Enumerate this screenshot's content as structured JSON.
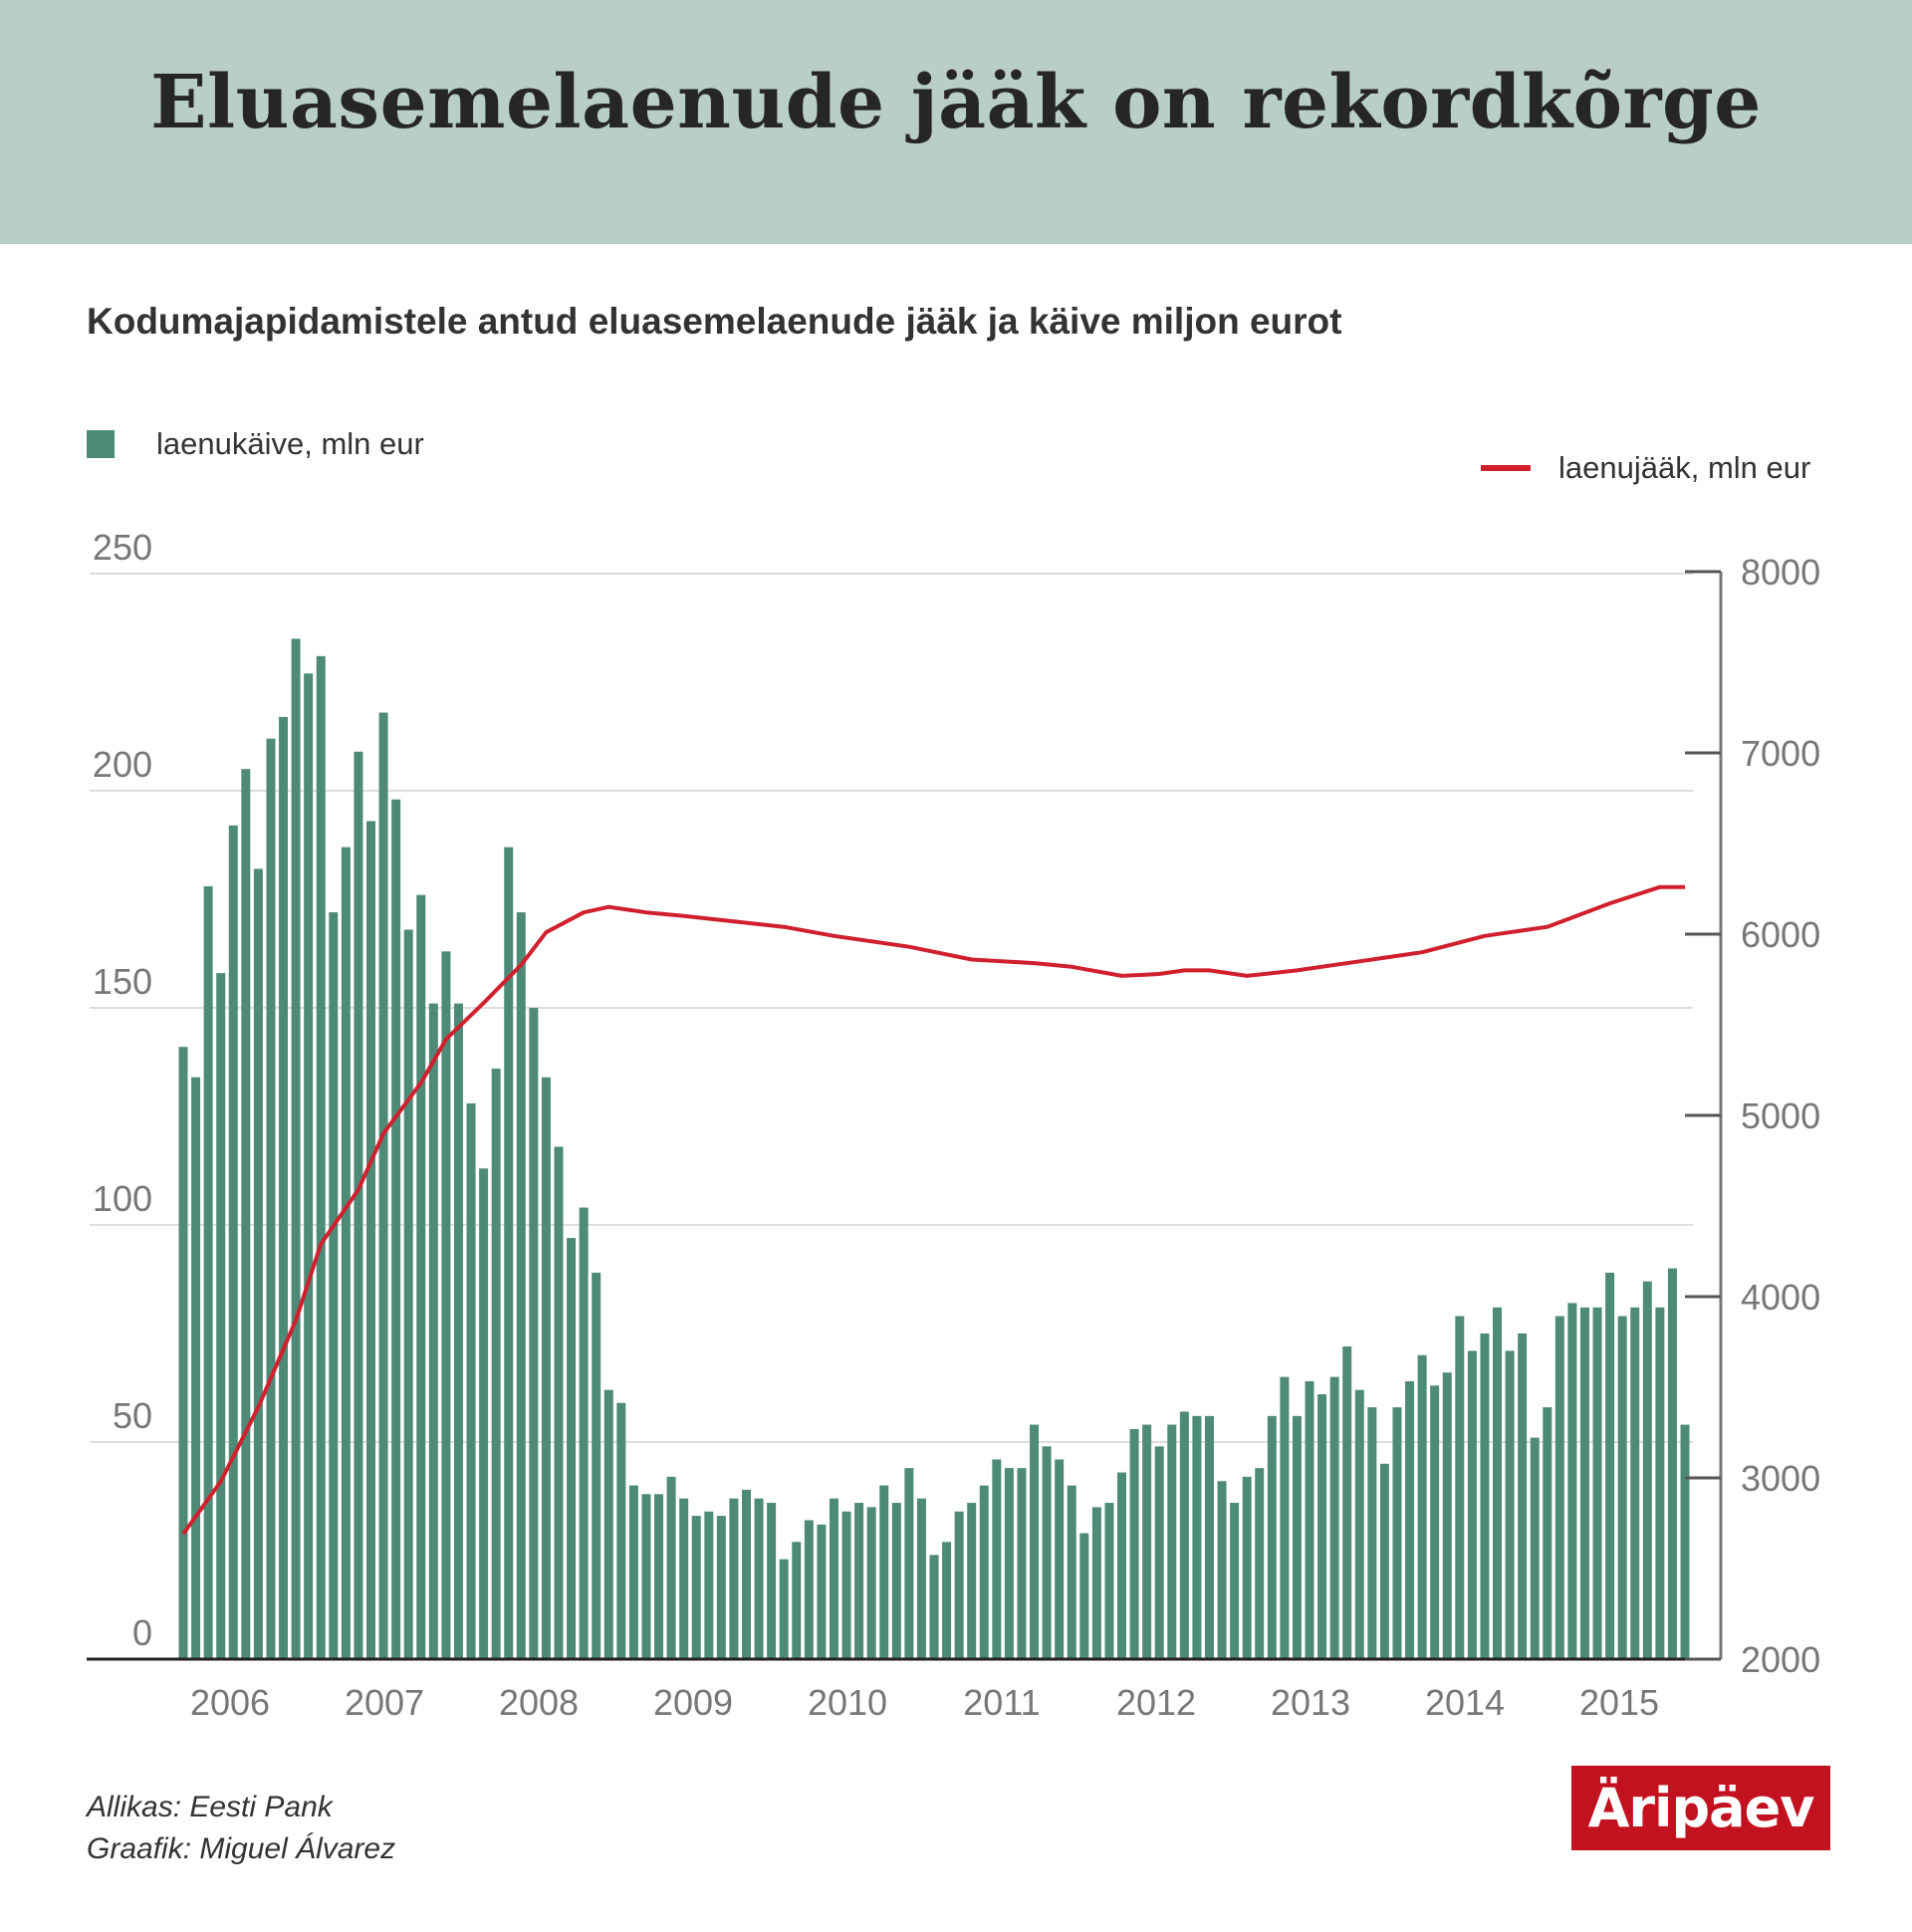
{
  "header": {
    "title": "Eluasemelaenude jääk on rekordkõrge"
  },
  "chart_data": {
    "type": "bar+line",
    "subtitle": "Kodumajapidamistele antud eluasemelaenude jääk ja käive miljon eurot",
    "legend": [
      {
        "name": "laenukäive, mln eur",
        "placement": "top-left",
        "color": "#4e8a78"
      },
      {
        "name": "laenujääk, mln eur",
        "placement": "top-right",
        "color": "#d0202e"
      }
    ],
    "x_tick_labels": [
      "2006",
      "2007",
      "2008",
      "2009",
      "2010",
      "2011",
      "2012",
      "2013",
      "2014",
      "2015"
    ],
    "y_left": {
      "ticks": [
        "0",
        "50",
        "100",
        "150",
        "200",
        "250"
      ],
      "range": [
        0,
        250
      ],
      "grid": true
    },
    "y_right": {
      "ticks": [
        "2000",
        "3000",
        "4000",
        "5000",
        "6000",
        "7000",
        "8000"
      ],
      "range": [
        2000,
        8000
      ]
    },
    "series": [
      {
        "name": "laenukäive, mln eur",
        "type": "bar",
        "axis": "left",
        "x": [
          "2005-09",
          "2005-10",
          "2005-11",
          "2005-12",
          "2006-01",
          "2006-02",
          "2006-03",
          "2006-04",
          "2006-05",
          "2006-06",
          "2006-07",
          "2006-08",
          "2006-09",
          "2006-10",
          "2006-11",
          "2006-12",
          "2007-01",
          "2007-02",
          "2007-03",
          "2007-04",
          "2007-05",
          "2007-06",
          "2007-07",
          "2007-08",
          "2007-09",
          "2007-10",
          "2007-11",
          "2007-12",
          "2008-01",
          "2008-02",
          "2008-03",
          "2008-04",
          "2008-05",
          "2008-06",
          "2008-07",
          "2008-08",
          "2008-09",
          "2008-10",
          "2008-11",
          "2008-12",
          "2009-01",
          "2009-02",
          "2009-03",
          "2009-04",
          "2009-05",
          "2009-06",
          "2009-07",
          "2009-08",
          "2009-09",
          "2009-10",
          "2009-11",
          "2009-12",
          "2010-01",
          "2010-02",
          "2010-03",
          "2010-04",
          "2010-05",
          "2010-06",
          "2010-07",
          "2010-08",
          "2010-09",
          "2010-10",
          "2010-11",
          "2010-12",
          "2011-01",
          "2011-02",
          "2011-03",
          "2011-04",
          "2011-05",
          "2011-06",
          "2011-07",
          "2011-08",
          "2011-09",
          "2011-10",
          "2011-11",
          "2011-12",
          "2012-01",
          "2012-02",
          "2012-03",
          "2012-04",
          "2012-05",
          "2012-06",
          "2012-07",
          "2012-08",
          "2012-09",
          "2012-10",
          "2012-11",
          "2012-12",
          "2013-01",
          "2013-02",
          "2013-03",
          "2013-04",
          "2013-05",
          "2013-06",
          "2013-07",
          "2013-08",
          "2013-09",
          "2013-10",
          "2013-11",
          "2013-12",
          "2014-01",
          "2014-02",
          "2014-03",
          "2014-04",
          "2014-05",
          "2014-06",
          "2014-07",
          "2014-08",
          "2014-09",
          "2014-10",
          "2014-11",
          "2014-12",
          "2015-01",
          "2015-02",
          "2015-03",
          "2015-04",
          "2015-05",
          "2015-06",
          "2015-07",
          "2015-08",
          "2015-09"
        ],
        "values": [
          141,
          134,
          178,
          158,
          192,
          205,
          182,
          212,
          217,
          235,
          227,
          231,
          172,
          187,
          209,
          193,
          218,
          198,
          168,
          176,
          151,
          163,
          151,
          128,
          113,
          136,
          187,
          172,
          150,
          134,
          118,
          97,
          104,
          89,
          62,
          59,
          40,
          38,
          38,
          42,
          37,
          33,
          34,
          33,
          37,
          39,
          37,
          36,
          23,
          27,
          32,
          31,
          37,
          34,
          36,
          35,
          40,
          36,
          44,
          37,
          24,
          27,
          34,
          36,
          40,
          46,
          44,
          44,
          54,
          49,
          46,
          40,
          29,
          35,
          36,
          43,
          53,
          54,
          49,
          54,
          57,
          56,
          56,
          41,
          36,
          42,
          44,
          56,
          65,
          56,
          64,
          61,
          65,
          72,
          62,
          58,
          45,
          58,
          64,
          70,
          63,
          66,
          79,
          71,
          75,
          81,
          71,
          75,
          51,
          58,
          79,
          82,
          81,
          81,
          89,
          79,
          81,
          87,
          81,
          90,
          54
        ]
      },
      {
        "name": "laenujääk, mln eur",
        "type": "line",
        "axis": "right",
        "points": [
          [
            "2005-09",
            2690
          ],
          [
            "2005-12",
            2980
          ],
          [
            "2006-03",
            3390
          ],
          [
            "2006-06",
            3870
          ],
          [
            "2006-08",
            4290
          ],
          [
            "2006-11",
            4590
          ],
          [
            "2007-01",
            4900
          ],
          [
            "2007-04",
            5180
          ],
          [
            "2007-06",
            5420
          ],
          [
            "2007-09",
            5620
          ],
          [
            "2007-12",
            5830
          ],
          [
            "2008-02",
            6010
          ],
          [
            "2008-05",
            6120
          ],
          [
            "2008-07",
            6150
          ],
          [
            "2008-10",
            6120
          ],
          [
            "2009-01",
            6100
          ],
          [
            "2009-05",
            6070
          ],
          [
            "2009-09",
            6040
          ],
          [
            "2010-01",
            5990
          ],
          [
            "2010-07",
            5930
          ],
          [
            "2010-12",
            5860
          ],
          [
            "2011-05",
            5840
          ],
          [
            "2011-08",
            5820
          ],
          [
            "2011-12",
            5770
          ],
          [
            "2012-03",
            5780
          ],
          [
            "2012-05",
            5800
          ],
          [
            "2012-07",
            5800
          ],
          [
            "2012-10",
            5770
          ],
          [
            "2013-02",
            5800
          ],
          [
            "2013-07",
            5850
          ],
          [
            "2013-12",
            5900
          ],
          [
            "2014-05",
            5990
          ],
          [
            "2014-08",
            6020
          ],
          [
            "2014-10",
            6040
          ],
          [
            "2015-03",
            6170
          ],
          [
            "2015-07",
            6260
          ],
          [
            "2015-09",
            6260
          ]
        ]
      }
    ]
  },
  "footer": {
    "source": "Allikas:  Eesti Pank",
    "author": "Graafik:  Miguel  Álvarez",
    "logo": "Äripäev"
  },
  "colors": {
    "header_bg": "#b9cfc6",
    "bar": "#4e8a78",
    "line": "#d0202e",
    "logo_bg": "#c3121f"
  }
}
